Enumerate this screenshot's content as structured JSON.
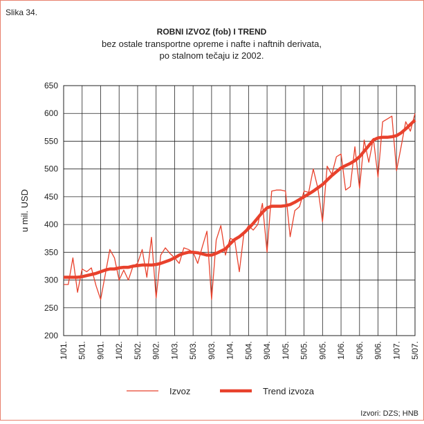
{
  "chart_data": {
    "type": "line",
    "label": "Slika 34.",
    "title": "ROBNI IZVOZ (fob) I TREND",
    "subtitle": [
      "bez ostale transportne opreme i nafte i naftnih derivata,",
      "po stalnom tečaju iz 2002."
    ],
    "ylabel": "u mil. USD",
    "source": "Izvori: DZS; HNB",
    "categories": [
      "1/01.",
      null,
      null,
      null,
      "5/01.",
      null,
      null,
      null,
      "9/01.",
      null,
      null,
      null,
      "1/02.",
      null,
      null,
      null,
      "5/02.",
      null,
      null,
      null,
      "9/02.",
      null,
      null,
      null,
      "1/03.",
      null,
      null,
      null,
      "5/03.",
      null,
      null,
      null,
      "9/03.",
      null,
      null,
      null,
      "1/04.",
      null,
      null,
      null,
      "5/04.",
      null,
      null,
      null,
      "9/04.",
      null,
      null,
      null,
      "1/05.",
      null,
      null,
      null,
      "5/05.",
      null,
      null,
      null,
      "9/05.",
      null,
      null,
      null,
      "1/06.",
      null,
      null,
      null,
      "5/06.",
      null,
      null,
      null,
      "9/06.",
      null,
      null,
      null,
      "1/07.",
      null,
      null,
      null,
      "5/07."
    ],
    "series": [
      {
        "name": "Izvoz",
        "color": "#e8412c",
        "values": [
          292,
          292,
          340,
          278,
          320,
          315,
          322,
          290,
          265,
          310,
          355,
          340,
          300,
          318,
          300,
          325,
          330,
          355,
          305,
          377,
          268,
          345,
          358,
          348,
          340,
          330,
          358,
          355,
          350,
          330,
          360,
          388,
          265,
          372,
          398,
          345,
          375,
          372,
          315,
          385,
          398,
          390,
          400,
          438,
          350,
          460,
          462,
          462,
          460,
          378,
          425,
          432,
          460,
          458,
          500,
          465,
          405,
          505,
          490,
          522,
          527,
          462,
          468,
          540,
          465,
          552,
          512,
          555,
          485,
          585,
          590,
          595,
          497,
          540,
          585,
          568,
          600
        ]
      },
      {
        "name": "Trend izvoza",
        "color": "#e8412c",
        "values": [
          305,
          305,
          305,
          305,
          306,
          308,
          310,
          312,
          315,
          318,
          320,
          320,
          322,
          323,
          323,
          325,
          326,
          327,
          327,
          327,
          328,
          330,
          333,
          336,
          340,
          345,
          348,
          350,
          350,
          349,
          347,
          345,
          345,
          348,
          352,
          356,
          365,
          373,
          378,
          385,
          393,
          402,
          412,
          422,
          430,
          433,
          433,
          433,
          434,
          436,
          440,
          445,
          450,
          455,
          460,
          466,
          472,
          480,
          488,
          495,
          502,
          506,
          510,
          515,
          522,
          532,
          542,
          552,
          556,
          557,
          557,
          558,
          560,
          565,
          572,
          580,
          588
        ]
      }
    ],
    "ylim": [
      200,
      650
    ],
    "yticks": [
      200,
      250,
      300,
      350,
      400,
      450,
      500,
      550,
      600,
      650
    ],
    "grid": true
  }
}
